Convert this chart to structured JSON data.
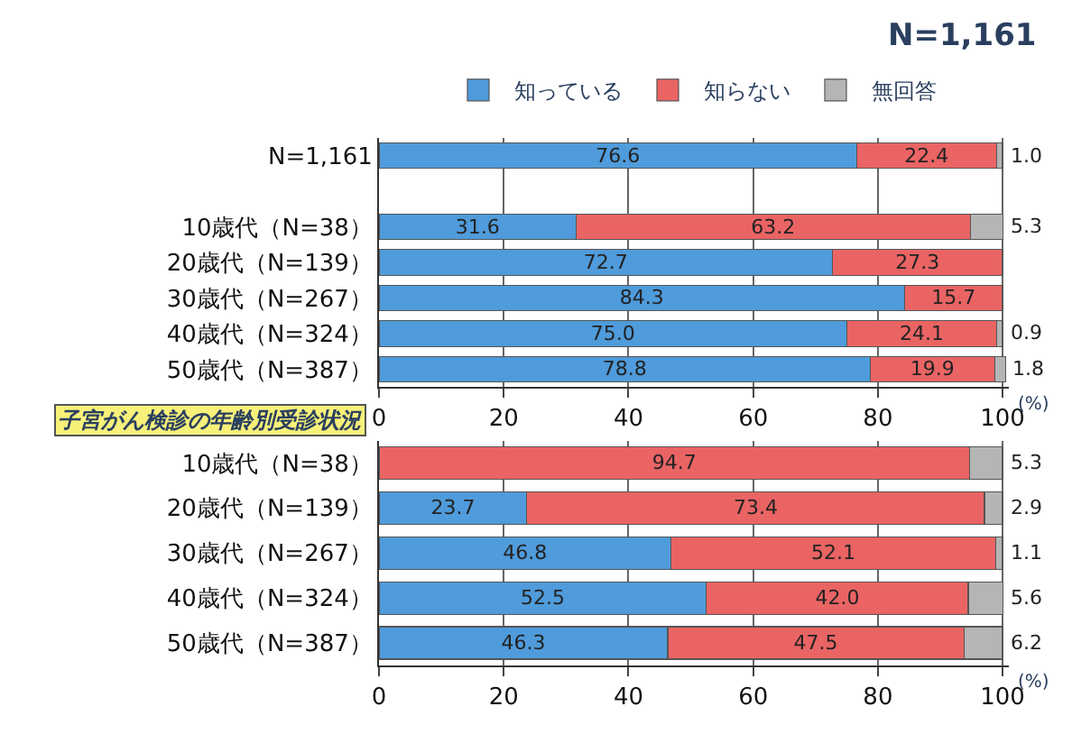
{
  "chart_data": [
    {
      "type": "bar",
      "orientation": "horizontal",
      "stacked": true,
      "title": "N=1,161",
      "xlabel": "(%)",
      "legend": "top",
      "grid": "x",
      "xlim": [
        0,
        101
      ],
      "xticks": [
        0,
        20,
        40,
        60,
        80,
        100
      ],
      "categories": [
        "N=1,161",
        null,
        "10歳代（N=38）",
        "20歳代（N=139）",
        "30歳代（N=267）",
        "40歳代（N=324）",
        "50歳代（N=387）"
      ],
      "series": [
        {
          "name": "知っている",
          "color": "#4f9bdb",
          "values": [
            76.6,
            null,
            31.6,
            72.7,
            84.3,
            75.0,
            78.8
          ],
          "value_labels": [
            "76.6",
            null,
            "31.6",
            "72.7",
            "84.3",
            "75.0",
            "78.8"
          ]
        },
        {
          "name": "知らない",
          "color": "#ea6464",
          "values": [
            22.4,
            null,
            63.2,
            27.3,
            15.7,
            24.1,
            19.9
          ],
          "value_labels": [
            "22.4",
            null,
            "63.2",
            "27.3",
            "15.7",
            "24.1",
            "19.9"
          ]
        },
        {
          "name": "無回答",
          "color": "#b5b5b5",
          "values": [
            1.0,
            null,
            5.3,
            null,
            null,
            0.9,
            1.8
          ],
          "value_labels": [
            "1.0",
            null,
            "5.3",
            null,
            null,
            "0.9",
            "1.8"
          ]
        }
      ]
    },
    {
      "type": "bar",
      "orientation": "horizontal",
      "stacked": true,
      "title": "子宮がん検診の年齢別受診状況",
      "xlabel": "(%)",
      "grid": "x",
      "xlim": [
        0,
        101
      ],
      "xticks": [
        0,
        20,
        40,
        60,
        80,
        100
      ],
      "categories": [
        "10歳代（N=38）",
        "20歳代（N=139）",
        "30歳代（N=267）",
        "40歳代（N=324）",
        "50歳代（N=387）"
      ],
      "series": [
        {
          "color": "#4f9bdb",
          "values": [
            null,
            23.7,
            46.8,
            52.5,
            46.3
          ],
          "value_labels": [
            null,
            "23.7",
            "46.8",
            "52.5",
            "46.3"
          ]
        },
        {
          "color": "#ea6464",
          "values": [
            94.7,
            73.4,
            52.1,
            42.0,
            47.5
          ],
          "value_labels": [
            "94.7",
            "73.4",
            "52.1",
            "42.0",
            "47.5"
          ]
        },
        {
          "color": "#b5b5b5",
          "values": [
            5.3,
            2.9,
            1.1,
            5.6,
            6.2
          ],
          "value_labels": [
            "5.3",
            "2.9",
            "1.1",
            "5.6",
            "6.2"
          ]
        }
      ]
    }
  ]
}
